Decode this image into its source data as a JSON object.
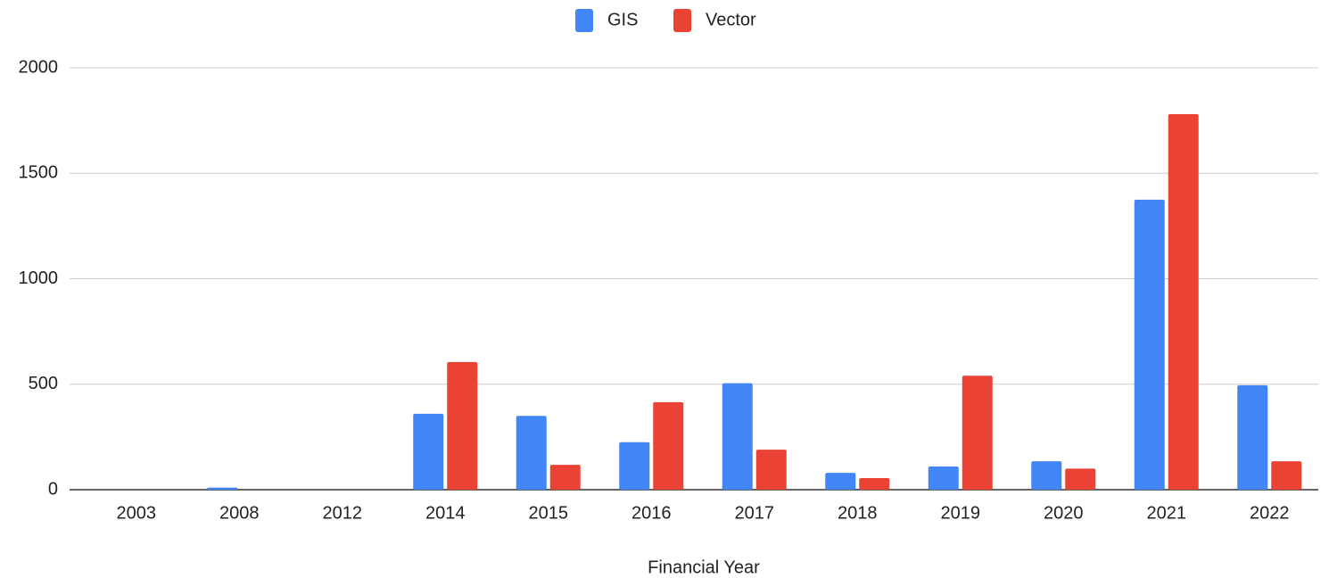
{
  "chart_data": {
    "type": "bar",
    "x_label": "Financial Year",
    "categories": [
      "2003",
      "2008",
      "2012",
      "2014",
      "2015",
      "2016",
      "2017",
      "2018",
      "2019",
      "2020",
      "2021",
      "2022"
    ],
    "series": [
      {
        "name": "GIS",
        "color": "#4285f4",
        "values": [
          0,
          10,
          0,
          360,
          350,
          225,
          505,
          80,
          110,
          135,
          1375,
          495
        ]
      },
      {
        "name": "Vector",
        "color": "#ea4335",
        "values": [
          0,
          0,
          0,
          605,
          118,
          415,
          190,
          55,
          540,
          100,
          1780,
          135
        ]
      }
    ],
    "ylim": [
      0,
      2000
    ],
    "yticks": [
      0,
      500,
      1000,
      1500,
      2000
    ],
    "grid": true,
    "legend": "top"
  }
}
